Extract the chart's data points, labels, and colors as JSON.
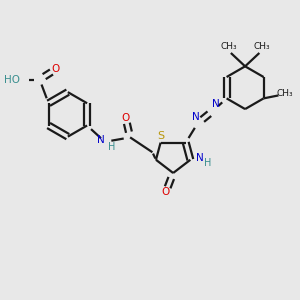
{
  "background_color": "#e8e8e8",
  "line_color": "#1a1a1a",
  "bond_lw": 1.6,
  "figsize": [
    3.0,
    3.0
  ],
  "dpi": 100,
  "xlim": [
    0,
    10
  ],
  "ylim": [
    0,
    10
  ]
}
